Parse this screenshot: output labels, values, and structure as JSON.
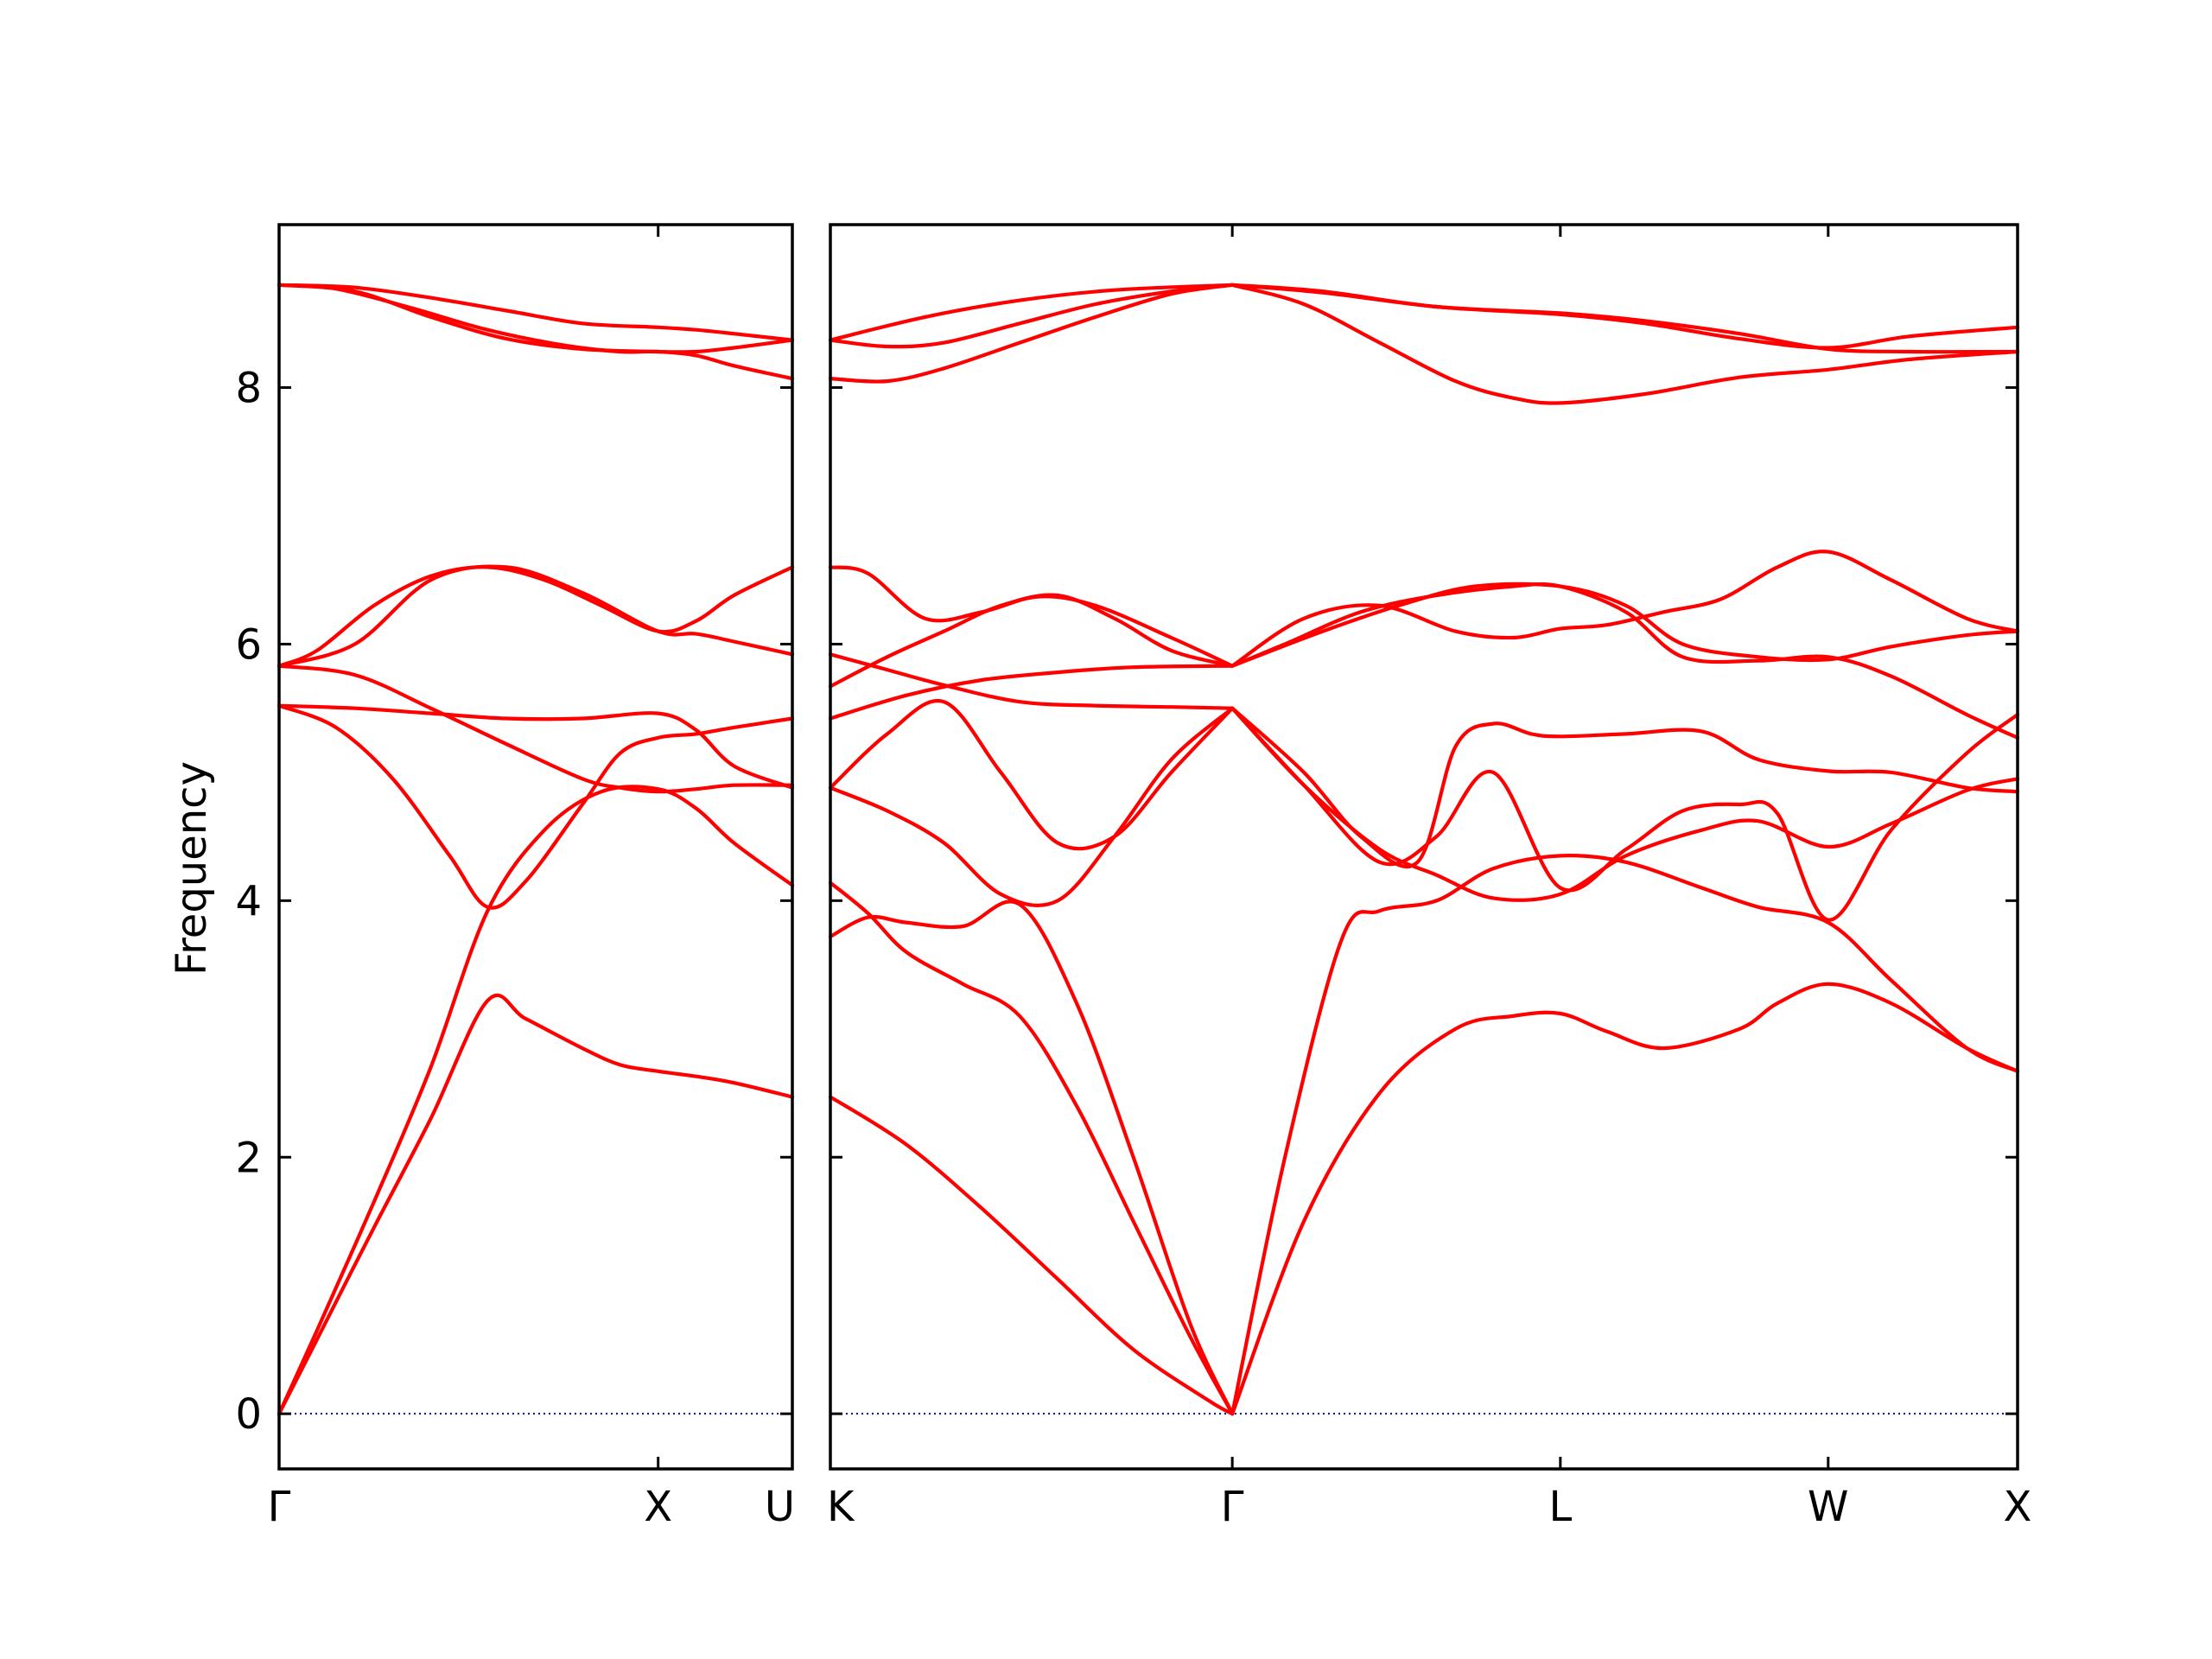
{
  "chart_data": {
    "type": "line",
    "ylabel": "Frequency",
    "ylim": [
      -0.43,
      9.27
    ],
    "yticks": [
      0,
      2,
      4,
      6,
      8
    ],
    "colors": {
      "bands": "#ff0000",
      "zero_line": "#0000cd"
    },
    "grid": false,
    "panels": [
      {
        "id": "left",
        "xticks": [
          {
            "pos": 0.0,
            "label": "Γ"
          },
          {
            "pos": 1.0,
            "label": "X"
          },
          {
            "pos": 1.354,
            "label": "U"
          }
        ],
        "xlim": [
          0.0,
          1.354
        ],
        "series": [
          {
            "x": [
              0.0,
              0.1,
              0.25,
              0.4,
              0.55,
              0.65,
              0.8,
              0.9,
              1.0,
              1.1,
              1.2,
              1.354
            ],
            "y": [
              0.0,
              0.58,
              1.45,
              2.3,
              3.22,
              3.08,
              2.85,
              2.72,
              2.67,
              2.63,
              2.58,
              2.47
            ]
          },
          {
            "x": [
              0.0,
              0.1,
              0.25,
              0.4,
              0.55,
              0.7,
              0.85,
              1.0,
              1.1,
              1.2,
              1.354
            ],
            "y": [
              0.0,
              0.65,
              1.65,
              2.7,
              3.92,
              4.55,
              4.85,
              4.87,
              4.72,
              4.45,
              4.12
            ]
          },
          {
            "x": [
              0.0,
              0.15,
              0.3,
              0.45,
              0.55,
              0.65,
              0.8,
              0.9,
              1.0,
              1.1,
              1.2,
              1.354
            ],
            "y": [
              5.52,
              5.35,
              4.95,
              4.35,
              3.95,
              4.15,
              4.75,
              5.15,
              5.27,
              5.3,
              5.35,
              5.42
            ]
          },
          {
            "x": [
              0.0,
              0.2,
              0.4,
              0.6,
              0.8,
              1.0,
              1.1,
              1.2,
              1.354
            ],
            "y": [
              5.52,
              5.5,
              5.46,
              5.42,
              5.42,
              5.46,
              5.33,
              5.05,
              4.88
            ]
          },
          {
            "x": [
              0.0,
              0.2,
              0.4,
              0.6,
              0.8,
              0.9,
              1.0,
              1.1,
              1.2,
              1.354
            ],
            "y": [
              5.83,
              5.76,
              5.5,
              5.22,
              4.95,
              4.88,
              4.85,
              4.87,
              4.9,
              4.9
            ]
          },
          {
            "x": [
              0.0,
              0.1,
              0.25,
              0.4,
              0.55,
              0.7,
              0.85,
              1.0,
              1.1,
              1.2,
              1.354
            ],
            "y": [
              5.83,
              5.95,
              6.3,
              6.53,
              6.6,
              6.5,
              6.3,
              6.1,
              6.18,
              6.38,
              6.6
            ]
          },
          {
            "x": [
              0.0,
              0.2,
              0.4,
              0.6,
              0.8,
              1.0,
              1.1,
              1.2,
              1.354
            ],
            "y": [
              5.83,
              6.0,
              6.5,
              6.6,
              6.4,
              6.1,
              6.08,
              6.02,
              5.92
            ]
          },
          {
            "x": [
              0.0,
              0.15,
              0.35,
              0.55,
              0.75,
              0.9,
              1.0,
              1.1,
              1.2,
              1.354
            ],
            "y": [
              8.8,
              8.77,
              8.62,
              8.45,
              8.33,
              8.28,
              8.28,
              8.25,
              8.17,
              8.07
            ]
          },
          {
            "x": [
              0.0,
              0.2,
              0.4,
              0.6,
              0.8,
              1.0,
              1.1,
              1.2,
              1.354
            ],
            "y": [
              8.8,
              8.75,
              8.55,
              8.38,
              8.3,
              8.28,
              8.28,
              8.31,
              8.37
            ]
          },
          {
            "x": [
              0.0,
              0.2,
              0.4,
              0.6,
              0.8,
              1.0,
              1.1,
              1.2,
              1.354
            ],
            "y": [
              8.8,
              8.78,
              8.7,
              8.6,
              8.5,
              8.47,
              8.45,
              8.42,
              8.37
            ]
          }
        ]
      },
      {
        "id": "right",
        "xticks": [
          {
            "pos": 0.0,
            "label": "K"
          },
          {
            "pos": 1.061,
            "label": "Γ"
          },
          {
            "pos": 1.927,
            "label": "L"
          },
          {
            "pos": 2.634,
            "label": "W"
          },
          {
            "pos": 3.134,
            "label": "X"
          }
        ],
        "xlim": [
          0.0,
          3.134
        ],
        "series": [
          {
            "x": [
              0.0,
              0.2,
              0.4,
              0.6,
              0.8,
              1.0,
              1.061
            ],
            "y": [
              2.47,
              2.1,
              1.6,
              1.05,
              0.5,
              0.1,
              0.0
            ]
          },
          {
            "x": [
              0.0,
              0.1,
              0.2,
              0.35,
              0.5,
              0.65,
              0.8,
              0.95,
              1.061
            ],
            "y": [
              3.72,
              3.87,
              3.83,
              3.8,
              3.97,
              3.2,
              2.0,
              0.7,
              0.0
            ]
          },
          {
            "x": [
              0.0,
              0.1,
              0.2,
              0.35,
              0.5,
              0.65,
              0.8,
              0.95,
              1.061
            ],
            "y": [
              4.14,
              3.9,
              3.6,
              3.35,
              3.1,
              2.4,
              1.5,
              0.6,
              0.0
            ]
          },
          {
            "x": [
              1.061,
              1.2,
              1.35,
              1.45,
              1.6,
              1.75,
              1.927,
              2.1,
              2.3,
              2.45,
              2.634,
              2.8,
              3.0,
              3.134
            ],
            "y": [
              0.0,
              2.0,
              3.7,
              3.92,
              4.0,
              4.25,
              4.35,
              4.3,
              4.1,
              3.95,
              3.83,
              3.38,
              2.85,
              2.67
            ]
          },
          {
            "x": [
              1.061,
              1.25,
              1.45,
              1.65,
              1.8,
              1.927,
              2.05,
              2.2,
              2.4,
              2.5,
              2.634,
              2.8,
              3.0,
              3.134
            ],
            "y": [
              0.0,
              1.5,
              2.5,
              3.0,
              3.1,
              3.12,
              2.98,
              2.85,
              3.0,
              3.2,
              3.35,
              3.2,
              2.85,
              2.67
            ]
          },
          {
            "x": [
              1.061,
              1.25,
              1.45,
              1.6,
              1.75,
              1.927,
              2.1,
              2.3,
              2.45,
              2.634,
              2.8,
              3.0,
              3.134
            ],
            "y": [
              5.5,
              4.9,
              4.4,
              4.2,
              4.02,
              4.05,
              4.35,
              4.55,
              4.62,
              4.42,
              4.6,
              4.86,
              4.95
            ]
          },
          {
            "x": [
              1.061,
              1.25,
              1.45,
              1.6,
              1.75,
              1.927,
              2.1,
              2.25,
              2.4,
              2.5,
              2.634,
              2.8,
              3.0,
              3.134
            ],
            "y": [
              5.5,
              4.9,
              4.3,
              4.5,
              5.0,
              4.1,
              4.4,
              4.7,
              4.75,
              4.68,
              3.85,
              4.55,
              5.15,
              5.45
            ]
          },
          {
            "x": [
              1.061,
              1.25,
              1.4,
              1.55,
              1.65,
              1.75,
              1.85,
              1.927,
              2.1,
              2.3,
              2.45,
              2.634,
              2.8,
              3.0,
              3.134
            ],
            "y": [
              5.5,
              5.0,
              4.5,
              4.3,
              5.2,
              5.38,
              5.3,
              5.28,
              5.3,
              5.32,
              5.1,
              5.01,
              5.0,
              4.88,
              4.85
            ]
          },
          {
            "x": [
              0.0,
              0.15,
              0.3,
              0.45,
              0.6,
              0.75,
              0.9,
              1.061
            ],
            "y": [
              4.88,
              5.3,
              5.55,
              5.0,
              4.45,
              4.5,
              5.0,
              5.5
            ]
          },
          {
            "x": [
              0.0,
              0.15,
              0.3,
              0.45,
              0.6,
              0.75,
              0.9,
              1.061
            ],
            "y": [
              4.88,
              4.7,
              4.45,
              4.05,
              4.0,
              4.5,
              5.1,
              5.5
            ]
          },
          {
            "x": [
              0.0,
              0.2,
              0.4,
              0.6,
              0.8,
              1.061
            ],
            "y": [
              5.42,
              5.6,
              5.72,
              5.78,
              5.82,
              5.83
            ]
          },
          {
            "x": [
              0.0,
              0.15,
              0.3,
              0.5,
              0.7,
              0.9,
              1.061
            ],
            "y": [
              5.92,
              5.8,
              5.68,
              5.55,
              5.52,
              5.51,
              5.5
            ]
          },
          {
            "x": [
              0.0,
              0.15,
              0.3,
              0.45,
              0.6,
              0.75,
              0.9,
              1.061
            ],
            "y": [
              5.67,
              5.9,
              6.1,
              6.3,
              6.38,
              6.2,
              5.95,
              5.83
            ]
          },
          {
            "x": [
              0.0,
              0.1,
              0.25,
              0.4,
              0.55,
              0.7,
              0.9,
              1.061
            ],
            "y": [
              6.6,
              6.55,
              6.2,
              6.25,
              6.37,
              6.3,
              6.05,
              5.83
            ]
          },
          {
            "x": [
              1.061,
              1.25,
              1.45,
              1.65,
              1.8,
              1.927,
              2.05,
              2.2,
              2.35,
              2.5,
              2.634,
              2.8,
              3.0,
              3.134
            ],
            "y": [
              5.83,
              6.2,
              6.3,
              6.1,
              6.05,
              6.12,
              6.15,
              6.25,
              6.35,
              6.6,
              6.72,
              6.5,
              6.2,
              6.1
            ]
          },
          {
            "x": [
              1.061,
              1.2,
              1.4,
              1.6,
              1.8,
              1.927,
              2.1,
              2.25,
              2.45,
              2.634,
              2.8,
              3.0,
              3.134
            ],
            "y": [
              5.83,
              6.0,
              6.25,
              6.38,
              6.45,
              6.45,
              6.25,
              5.9,
              5.87,
              5.9,
              5.75,
              5.45,
              5.27
            ]
          },
          {
            "x": [
              1.061,
              1.3,
              1.5,
              1.7,
              1.927,
              2.1,
              2.25,
              2.45,
              2.634,
              2.8,
              3.0,
              3.134
            ],
            "y": [
              5.83,
              6.1,
              6.3,
              6.45,
              6.45,
              6.3,
              6.0,
              5.9,
              5.88,
              5.98,
              6.07,
              6.1
            ]
          },
          {
            "x": [
              0.0,
              0.15,
              0.3,
              0.5,
              0.7,
              0.9,
              1.061
            ],
            "y": [
              8.07,
              8.05,
              8.15,
              8.35,
              8.55,
              8.73,
              8.8
            ]
          },
          {
            "x": [
              0.0,
              0.15,
              0.3,
              0.5,
              0.7,
              0.9,
              1.061
            ],
            "y": [
              8.37,
              8.32,
              8.35,
              8.5,
              8.65,
              8.75,
              8.8
            ]
          },
          {
            "x": [
              0.0,
              0.25,
              0.5,
              0.75,
              1.061
            ],
            "y": [
              8.37,
              8.55,
              8.68,
              8.76,
              8.8
            ]
          },
          {
            "x": [
              1.061,
              1.25,
              1.45,
              1.65,
              1.8,
              1.927,
              2.15,
              2.4,
              2.634,
              2.85,
              3.134
            ],
            "y": [
              8.8,
              8.65,
              8.35,
              8.05,
              7.92,
              7.88,
              7.95,
              8.08,
              8.14,
              8.22,
              8.28
            ]
          },
          {
            "x": [
              1.061,
              1.3,
              1.6,
              1.927,
              2.15,
              2.4,
              2.634,
              2.85,
              3.134
            ],
            "y": [
              8.8,
              8.75,
              8.63,
              8.58,
              8.52,
              8.42,
              8.3,
              8.28,
              8.28
            ]
          },
          {
            "x": [
              1.061,
              1.3,
              1.6,
              1.927,
              2.15,
              2.4,
              2.634,
              2.85,
              3.134
            ],
            "y": [
              8.8,
              8.74,
              8.63,
              8.57,
              8.5,
              8.38,
              8.31,
              8.4,
              8.47
            ]
          }
        ]
      }
    ]
  }
}
